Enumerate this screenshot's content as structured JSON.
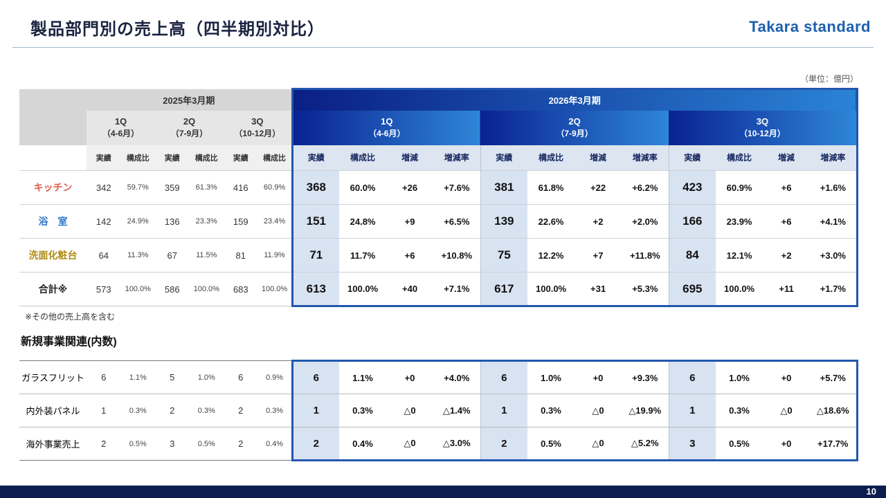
{
  "page": {
    "title": "製品部門別の売上高（四半期別対比）",
    "logo": "Takara standard",
    "unit_note": "（単位：億円）",
    "footnote": "※その他の売上高を含む",
    "section2_title": "新規事業関連(内数)",
    "page_number": "10"
  },
  "colors": {
    "block_border_blue": "#2257ae",
    "header_gradient_dark": "#0a1f86",
    "header_gradient_light": "#2e86d8",
    "jisseki_cell_bg": "#d8e3f2",
    "kitchen_label": "#e0604e",
    "bath_label": "#2e75c8",
    "vanity_label": "#ad8c14",
    "total_label": "#222222"
  },
  "main_table": {
    "year_prev": "2025年3月期",
    "year_curr": "2026年3月期",
    "quarters": [
      {
        "label": "1Q",
        "sub": "（4-6月）"
      },
      {
        "label": "2Q",
        "sub": "（7-9月）"
      },
      {
        "label": "3Q",
        "sub": "（10-12月）"
      }
    ],
    "col_headers_prev": [
      "実績",
      "構成比"
    ],
    "col_headers_curr": [
      "実績",
      "構成比",
      "増減",
      "増減率"
    ],
    "rows": [
      {
        "label": "キッチン",
        "color": "#e0604e",
        "prev": [
          "342",
          "59.7%",
          "359",
          "61.3%",
          "416",
          "60.9%"
        ],
        "curr": [
          "368",
          "60.0%",
          "+26",
          "+7.6%",
          "381",
          "61.8%",
          "+22",
          "+6.2%",
          "423",
          "60.9%",
          "+6",
          "+1.6%"
        ]
      },
      {
        "label": "浴　室",
        "color": "#2e75c8",
        "prev": [
          "142",
          "24.9%",
          "136",
          "23.3%",
          "159",
          "23.4%"
        ],
        "curr": [
          "151",
          "24.8%",
          "+9",
          "+6.5%",
          "139",
          "22.6%",
          "+2",
          "+2.0%",
          "166",
          "23.9%",
          "+6",
          "+4.1%"
        ]
      },
      {
        "label": "洗面化粧台",
        "color": "#ad8c14",
        "prev": [
          "64",
          "11.3%",
          "67",
          "11.5%",
          "81",
          "11.9%"
        ],
        "curr": [
          "71",
          "11.7%",
          "+6",
          "+10.8%",
          "75",
          "12.2%",
          "+7",
          "+11.8%",
          "84",
          "12.1%",
          "+2",
          "+3.0%"
        ]
      },
      {
        "label": "合計※",
        "color": "#222222",
        "prev": [
          "573",
          "100.0%",
          "586",
          "100.0%",
          "683",
          "100.0%"
        ],
        "curr": [
          "613",
          "100.0%",
          "+40",
          "+7.1%",
          "617",
          "100.0%",
          "+31",
          "+5.3%",
          "695",
          "100.0%",
          "+11",
          "+1.7%"
        ]
      }
    ]
  },
  "sub_table": {
    "rows": [
      {
        "label": "ガラスフリット",
        "prev": [
          "6",
          "1.1%",
          "5",
          "1.0%",
          "6",
          "0.9%"
        ],
        "curr": [
          "6",
          "1.1%",
          "+0",
          "+4.0%",
          "6",
          "1.0%",
          "+0",
          "+9.3%",
          "6",
          "1.0%",
          "+0",
          "+5.7%"
        ]
      },
      {
        "label": "内外装パネル",
        "prev": [
          "1",
          "0.3%",
          "2",
          "0.3%",
          "2",
          "0.3%"
        ],
        "curr": [
          "1",
          "0.3%",
          "△0",
          "△1.4%",
          "1",
          "0.3%",
          "△0",
          "△19.9%",
          "1",
          "0.3%",
          "△0",
          "△18.6%"
        ]
      },
      {
        "label": "海外事業売上",
        "prev": [
          "2",
          "0.5%",
          "3",
          "0.5%",
          "2",
          "0.4%"
        ],
        "curr": [
          "2",
          "0.4%",
          "△0",
          "△3.0%",
          "2",
          "0.5%",
          "△0",
          "△5.2%",
          "3",
          "0.5%",
          "+0",
          "+17.7%"
        ]
      }
    ]
  }
}
